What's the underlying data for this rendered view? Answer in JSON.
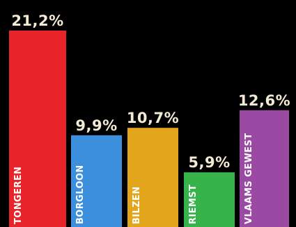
{
  "chart_data": {
    "type": "bar",
    "categories": [
      "TONGEREN",
      "BORGLOON",
      "BILZEN",
      "RIEMST",
      "VLAAMS GEWEST"
    ],
    "values": [
      21.2,
      9.9,
      10.7,
      5.9,
      12.6
    ],
    "value_labels": [
      "21,2%",
      "9,9%",
      "10,7%",
      "5,9%",
      "12,6%"
    ],
    "colors": [
      "#e8232a",
      "#3c8fdd",
      "#e3a51c",
      "#36b34a",
      "#9a4aa2"
    ],
    "title": "",
    "xlabel": "",
    "ylabel": "",
    "ylim": [
      0,
      25
    ],
    "grid": false,
    "legend": "none"
  }
}
